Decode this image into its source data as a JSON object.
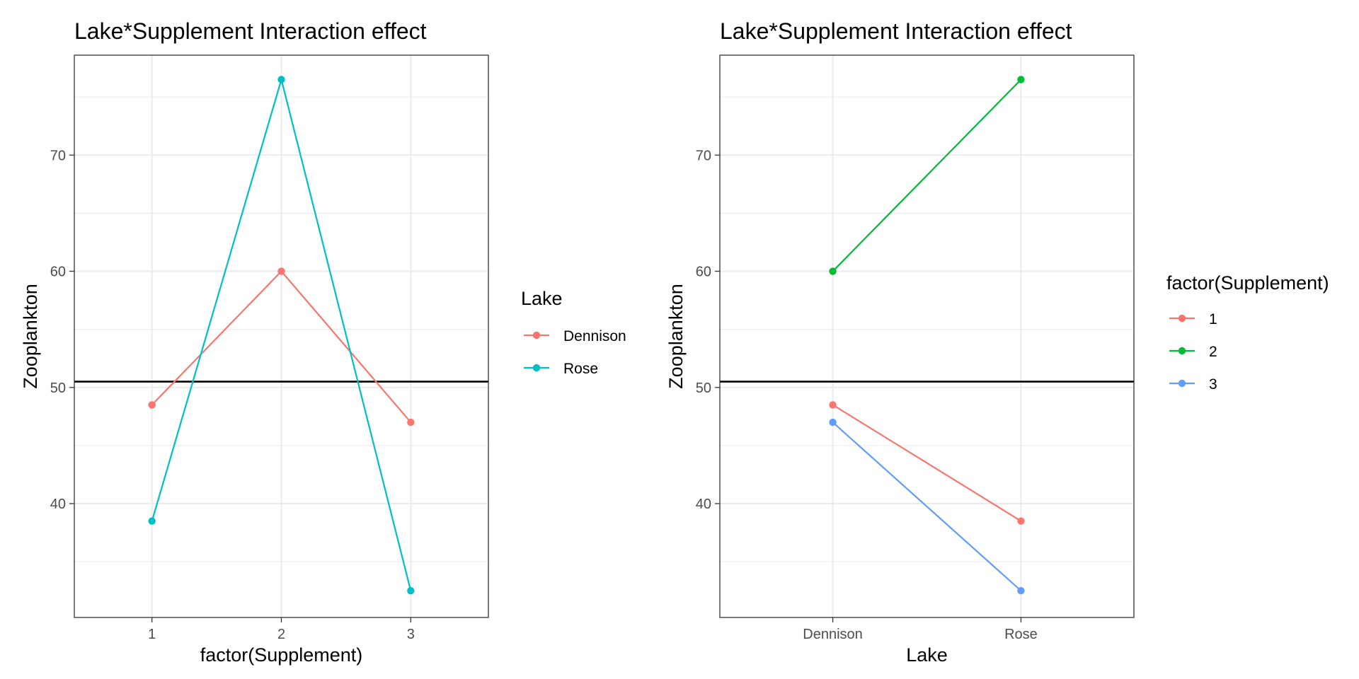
{
  "chart_data": [
    {
      "type": "line",
      "title": "Lake*Supplement Interaction effect",
      "xlabel": "factor(Supplement)",
      "ylabel": "Zooplankton",
      "categories": [
        "1",
        "2",
        "3"
      ],
      "ylim": [
        30.2,
        78.6
      ],
      "yticks": [
        40,
        50,
        60,
        70
      ],
      "legend": {
        "title": "Lake",
        "position": "right"
      },
      "series": [
        {
          "name": "Dennison",
          "color": "#F8766D",
          "values": [
            48.5,
            60,
            47
          ]
        },
        {
          "name": "Rose",
          "color": "#00BFC4",
          "values": [
            38.5,
            76.5,
            32.5
          ]
        }
      ],
      "hline": 50.5,
      "grid": true
    },
    {
      "type": "line",
      "title": "Lake*Supplement Interaction effect",
      "xlabel": "Lake",
      "ylabel": "Zooplankton",
      "categories": [
        "Dennison",
        "Rose"
      ],
      "ylim": [
        30.2,
        78.6
      ],
      "yticks": [
        40,
        50,
        60,
        70
      ],
      "legend": {
        "title": "factor(Supplement)",
        "position": "right"
      },
      "series": [
        {
          "name": "1",
          "color": "#F8766D",
          "values": [
            48.5,
            38.5
          ]
        },
        {
          "name": "2",
          "color": "#00BA38",
          "values": [
            60,
            76.5
          ]
        },
        {
          "name": "3",
          "color": "#619CFF",
          "values": [
            47,
            32.5
          ]
        }
      ],
      "hline": 50.5,
      "grid": true
    }
  ]
}
